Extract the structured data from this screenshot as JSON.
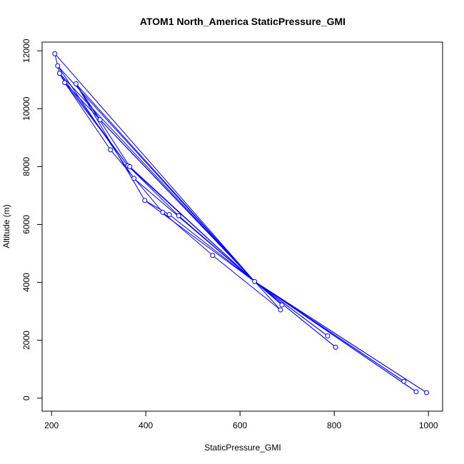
{
  "chart_data": {
    "type": "scatter",
    "title": "ATOM1 North_America StaticPressure_GMI",
    "xlabel": "StaticPressure_GMI",
    "ylabel": "Altitude (m)",
    "xlim": [
      180,
      1030
    ],
    "ylim": [
      -450,
      12300
    ],
    "x_ticks": [
      200,
      400,
      600,
      800,
      1000
    ],
    "y_ticks": [
      0,
      2000,
      4000,
      6000,
      8000,
      10000,
      12000
    ],
    "color": "#0000ff",
    "points": [
      {
        "x": 207,
        "y": 11900
      },
      {
        "x": 213,
        "y": 11480
      },
      {
        "x": 217,
        "y": 11220
      },
      {
        "x": 228,
        "y": 10900
      },
      {
        "x": 252,
        "y": 10860
      },
      {
        "x": 303,
        "y": 9620
      },
      {
        "x": 325,
        "y": 8580
      },
      {
        "x": 362,
        "y": 8030
      },
      {
        "x": 366,
        "y": 8000
      },
      {
        "x": 375,
        "y": 7590
      },
      {
        "x": 398,
        "y": 6830
      },
      {
        "x": 436,
        "y": 6420
      },
      {
        "x": 450,
        "y": 6340
      },
      {
        "x": 470,
        "y": 6300
      },
      {
        "x": 542,
        "y": 4930
      },
      {
        "x": 631,
        "y": 4030
      },
      {
        "x": 686,
        "y": 3050
      },
      {
        "x": 689,
        "y": 3220
      },
      {
        "x": 786,
        "y": 2150
      },
      {
        "x": 803,
        "y": 1760
      },
      {
        "x": 948,
        "y": 580
      },
      {
        "x": 974,
        "y": 220
      },
      {
        "x": 996,
        "y": 190
      }
    ],
    "segments": [
      [
        [
          207,
          11900
        ],
        [
          213,
          11480
        ],
        [
          217,
          11220
        ],
        [
          228,
          10900
        ],
        [
          362,
          8030
        ],
        [
          631,
          4030
        ],
        [
          996,
          190
        ]
      ],
      [
        [
          996,
          190
        ],
        [
          631,
          4030
        ],
        [
          228,
          10900
        ]
      ],
      [
        [
          228,
          10900
        ],
        [
          325,
          8580
        ],
        [
          436,
          6420
        ],
        [
          542,
          4930
        ],
        [
          686,
          3050
        ]
      ],
      [
        [
          686,
          3050
        ],
        [
          631,
          4030
        ],
        [
          303,
          9620
        ],
        [
          252,
          10860
        ]
      ],
      [
        [
          252,
          10860
        ],
        [
          366,
          8000
        ],
        [
          631,
          4030
        ],
        [
          948,
          580
        ]
      ],
      [
        [
          948,
          580
        ],
        [
          631,
          4030
        ],
        [
          217,
          11220
        ]
      ],
      [
        [
          217,
          11220
        ],
        [
          362,
          8030
        ],
        [
          470,
          6300
        ],
        [
          631,
          4030
        ],
        [
          786,
          2150
        ]
      ],
      [
        [
          786,
          2150
        ],
        [
          631,
          4030
        ],
        [
          213,
          11480
        ]
      ],
      [
        [
          213,
          11480
        ],
        [
          375,
          7590
        ],
        [
          631,
          4030
        ],
        [
          974,
          220
        ]
      ],
      [
        [
          974,
          220
        ],
        [
          631,
          4030
        ],
        [
          207,
          11900
        ]
      ],
      [
        [
          252,
          10860
        ],
        [
          398,
          6830
        ],
        [
          450,
          6340
        ],
        [
          631,
          4030
        ],
        [
          689,
          3220
        ]
      ],
      [
        [
          689,
          3220
        ],
        [
          631,
          4030
        ],
        [
          303,
          9620
        ]
      ],
      [
        [
          398,
          6830
        ],
        [
          631,
          4030
        ],
        [
          803,
          1760
        ]
      ],
      [
        [
          803,
          1760
        ],
        [
          631,
          4030
        ],
        [
          252,
          10860
        ]
      ]
    ]
  }
}
